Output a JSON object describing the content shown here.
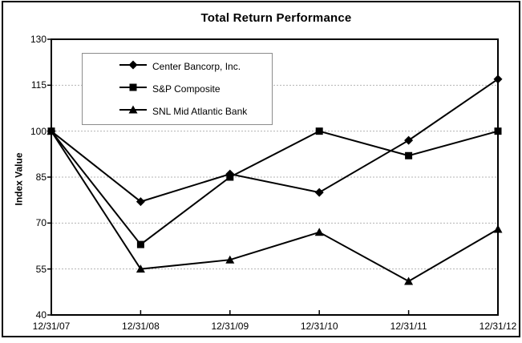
{
  "window": {
    "background": "#ffffff",
    "frame_border_color": "#000000"
  },
  "chart_data": {
    "type": "line",
    "title": "Total Return Performance",
    "xlabel": "",
    "ylabel": "Index Value",
    "categories": [
      "12/31/07",
      "12/31/08",
      "12/31/09",
      "12/31/10",
      "12/31/11",
      "12/31/12"
    ],
    "series": [
      {
        "name": "Center Bancorp, Inc.",
        "marker": "diamond",
        "color": "#000000",
        "values": [
          100,
          77,
          86,
          80,
          97,
          117
        ]
      },
      {
        "name": "S&P Composite",
        "marker": "square",
        "color": "#000000",
        "values": [
          100,
          63,
          85,
          100,
          92,
          100
        ]
      },
      {
        "name": "SNL Mid Atlantic Bank",
        "marker": "triangle",
        "color": "#000000",
        "values": [
          100,
          55,
          58,
          67,
          51,
          68
        ]
      }
    ],
    "ylim": [
      40,
      130
    ],
    "yticks": [
      40,
      55,
      70,
      85,
      100,
      115,
      130
    ],
    "grid": true,
    "gridline_color": "#b3b3b3",
    "axis_color": "#000000",
    "legend_position": "upper-left",
    "legend_border_color": "#8c8c8c"
  }
}
